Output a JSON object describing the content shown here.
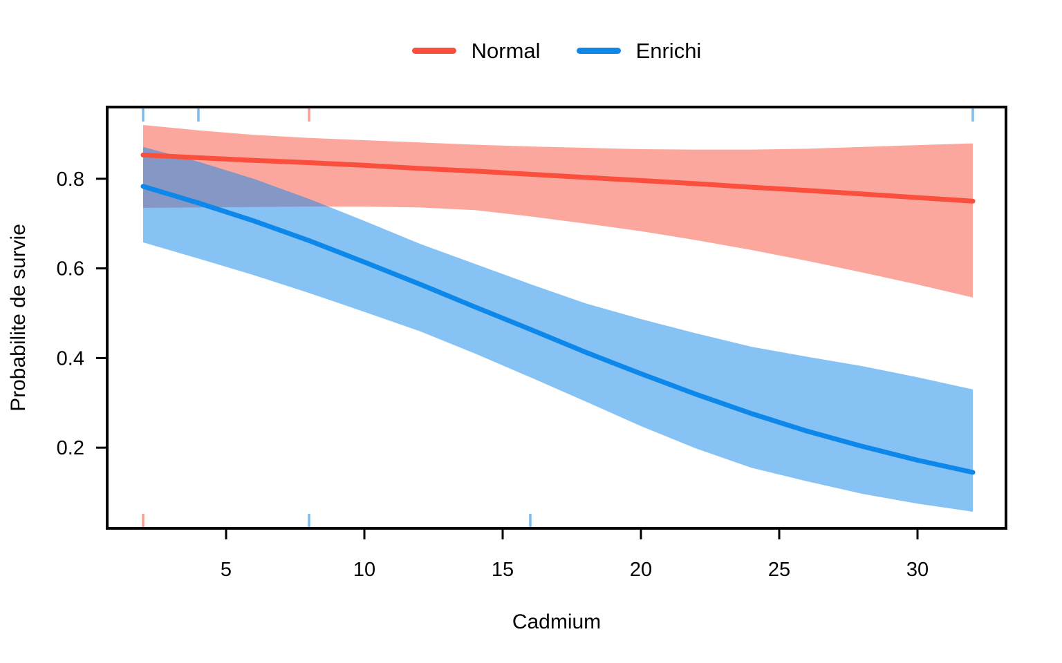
{
  "legend": {
    "items": [
      {
        "label": "Normal",
        "color": "#FA4F3D"
      },
      {
        "label": "Enrichi",
        "color": "#0D87E9"
      }
    ]
  },
  "chart_data": {
    "type": "line",
    "title": "",
    "xlabel": "Cadmium",
    "ylabel": "Probabilite de survie",
    "xlim": [
      0.7,
      33.2
    ],
    "ylim": [
      0.02,
      0.96
    ],
    "x_ticks": [
      5,
      10,
      15,
      20,
      25,
      30
    ],
    "y_ticks": [
      0.2,
      0.4,
      0.6,
      0.8
    ],
    "grid": false,
    "legend_position": "top-center",
    "x": [
      2,
      4,
      6,
      8,
      10,
      12,
      14,
      16,
      18,
      20,
      22,
      24,
      26,
      28,
      30,
      32
    ],
    "series": [
      {
        "name": "Normal",
        "color": "#FA4F3D",
        "band_color": "#FA4F3D",
        "values": [
          0.853,
          0.847,
          0.841,
          0.836,
          0.83,
          0.823,
          0.817,
          0.81,
          0.803,
          0.796,
          0.789,
          0.781,
          0.774,
          0.766,
          0.758,
          0.75
        ],
        "band_upper": [
          0.92,
          0.908,
          0.898,
          0.891,
          0.886,
          0.881,
          0.876,
          0.872,
          0.869,
          0.866,
          0.865,
          0.865,
          0.867,
          0.871,
          0.875,
          0.879
        ],
        "band_lower": [
          0.735,
          0.736,
          0.737,
          0.738,
          0.738,
          0.736,
          0.73,
          0.716,
          0.7,
          0.683,
          0.663,
          0.641,
          0.617,
          0.591,
          0.564,
          0.535
        ]
      },
      {
        "name": "Enrichi",
        "color": "#0D87E9",
        "band_color": "#0D87E9",
        "values": [
          0.783,
          0.746,
          0.706,
          0.662,
          0.614,
          0.565,
          0.514,
          0.464,
          0.413,
          0.365,
          0.319,
          0.276,
          0.237,
          0.203,
          0.172,
          0.145
        ],
        "band_upper": [
          0.871,
          0.838,
          0.8,
          0.755,
          0.706,
          0.655,
          0.61,
          0.565,
          0.522,
          0.487,
          0.455,
          0.425,
          0.403,
          0.382,
          0.357,
          0.33
        ],
        "band_lower": [
          0.658,
          0.622,
          0.585,
          0.545,
          0.503,
          0.46,
          0.41,
          0.357,
          0.303,
          0.248,
          0.198,
          0.155,
          0.125,
          0.097,
          0.075,
          0.057
        ]
      }
    ],
    "rug_marks": {
      "top": [
        {
          "x": 2,
          "series": "Enrichi"
        },
        {
          "x": 4,
          "series": "Enrichi"
        },
        {
          "x": 8,
          "series": "Normal"
        },
        {
          "x": 32,
          "series": "Enrichi"
        }
      ],
      "bottom": [
        {
          "x": 2,
          "series": "Normal"
        },
        {
          "x": 8,
          "series": "Enrichi"
        },
        {
          "x": 16,
          "series": "Enrichi"
        }
      ]
    }
  }
}
